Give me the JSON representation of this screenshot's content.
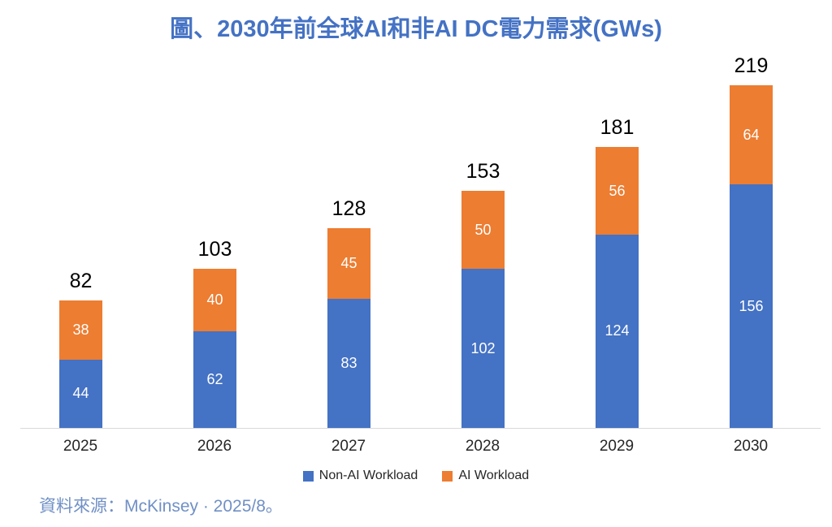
{
  "title": "圖、2030年前全球AI和非AI DC電力需求(GWs)",
  "source_note": "資料來源：McKinsey · 2025/8。",
  "legend": [
    {
      "label": "Non-AI Workload",
      "color": "#4472C4"
    },
    {
      "label": "AI Workload",
      "color": "#ED7D31"
    }
  ],
  "colors": {
    "title": "#4472C4",
    "non_ai_bar": "#4472C4",
    "ai_bar": "#ED7D31",
    "segment_label": "#FFFFFF",
    "total_label": "#000000",
    "axis_label": "#262626",
    "axis_line": "#D9D9D9",
    "source_text": "#7090C5",
    "background": "#FFFFFF"
  },
  "chart_data": {
    "type": "bar",
    "stacked": true,
    "title": "圖、2030年前全球AI和非AI DC電力需求(GWs)",
    "categories": [
      "2025",
      "2026",
      "2027",
      "2028",
      "2029",
      "2030"
    ],
    "series": [
      {
        "name": "Non-AI Workload",
        "color": "#4472C4",
        "values": [
          44,
          62,
          83,
          102,
          124,
          156
        ]
      },
      {
        "name": "AI Workload",
        "color": "#ED7D31",
        "values": [
          38,
          40,
          45,
          50,
          56,
          64
        ]
      }
    ],
    "totals": [
      82,
      103,
      128,
      153,
      181,
      219
    ],
    "xlabel": "",
    "ylabel": "",
    "ylim": [
      0,
      230
    ],
    "grid": false,
    "legend_position": "bottom"
  }
}
